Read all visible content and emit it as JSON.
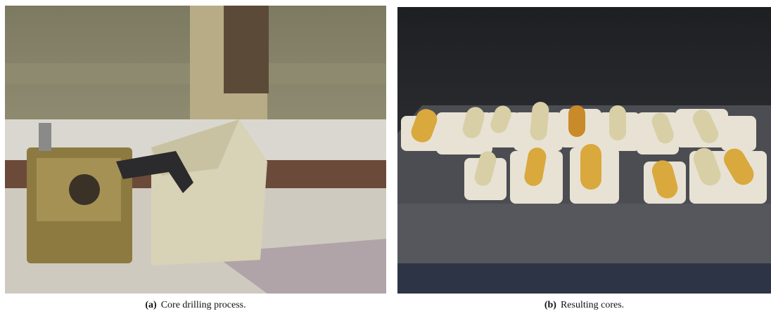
{
  "figures": [
    {
      "label": "(a)",
      "caption": "Core drilling process."
    },
    {
      "label": "(b)",
      "caption": "Resulting cores."
    }
  ]
}
